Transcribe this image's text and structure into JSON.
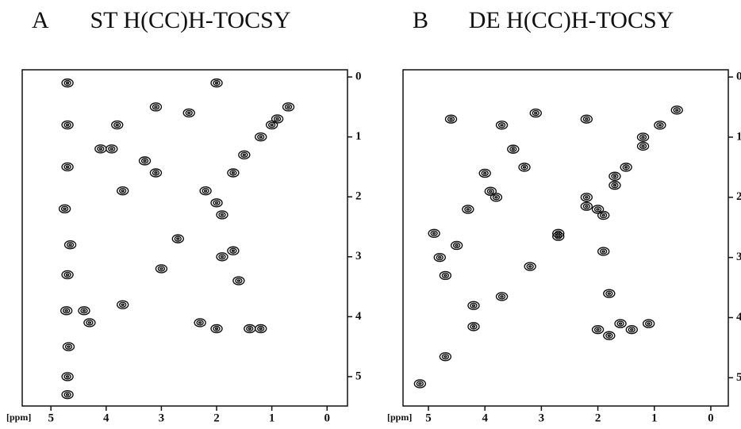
{
  "chart_data": [
    {
      "type": "contour",
      "panel": "A",
      "title": "ST H(CC)H-TOCSY",
      "x_label": "[ppm]",
      "xlim": [
        5.52,
        -0.37
      ],
      "ylim": [
        -0.12,
        5.49
      ],
      "yreversed": true,
      "xticks": [
        5,
        4,
        3,
        2,
        1,
        0
      ],
      "yticks": [
        0,
        1,
        2,
        3,
        4,
        5
      ],
      "color": "#111111",
      "x": [
        4.7,
        4.7,
        4.7,
        4.75,
        4.65,
        4.7,
        4.72,
        4.68,
        4.7,
        4.7,
        3.8,
        3.9,
        3.7,
        4.4,
        4.3,
        2.0,
        1.9,
        2.2,
        1.7,
        1.5,
        1.2,
        0.9,
        0.7,
        3.3,
        3.1,
        3.0,
        2.7,
        1.9,
        1.7,
        1.6,
        2.3,
        2.0,
        1.4,
        1.2,
        4.1,
        3.7,
        3.1,
        2.0,
        1.0,
        2.5
      ],
      "y": [
        0.1,
        0.8,
        1.5,
        2.2,
        2.8,
        3.3,
        3.9,
        4.5,
        5.0,
        5.3,
        0.8,
        1.2,
        1.9,
        3.9,
        4.1,
        2.1,
        2.3,
        1.9,
        1.6,
        1.3,
        1.0,
        0.7,
        0.5,
        1.4,
        1.6,
        3.2,
        2.7,
        3.0,
        2.9,
        3.4,
        4.1,
        4.2,
        4.2,
        4.2,
        1.2,
        3.8,
        0.5,
        0.1,
        0.8,
        0.6
      ]
    },
    {
      "type": "contour",
      "panel": "B",
      "title": "DE H(CC)H-TOCSY",
      "x_label": "[ppm]",
      "xlim": [
        5.45,
        -0.31
      ],
      "ylim": [
        -0.12,
        5.47
      ],
      "yreversed": true,
      "xticks": [
        5,
        4,
        3,
        2,
        1,
        0
      ],
      "yticks": [
        0,
        1,
        2,
        3,
        4,
        5
      ],
      "color": "#111111",
      "x": [
        5.15,
        4.7,
        4.2,
        3.7,
        3.2,
        2.7,
        2.2,
        1.7,
        1.2,
        0.6,
        4.9,
        4.8,
        4.7,
        4.5,
        4.3,
        4.0,
        3.9,
        3.8,
        3.7,
        3.5,
        2.2,
        2.0,
        1.9,
        1.7,
        1.5,
        2.0,
        1.8,
        1.6,
        1.4,
        1.1,
        1.2,
        0.9,
        1.9,
        2.2,
        1.8,
        3.3,
        3.1,
        2.7,
        4.2,
        4.6
      ],
      "y": [
        5.1,
        4.65,
        4.15,
        3.65,
        3.15,
        2.65,
        2.15,
        1.65,
        1.15,
        0.55,
        2.6,
        3.0,
        3.3,
        2.8,
        2.2,
        1.6,
        1.9,
        2.0,
        0.8,
        1.2,
        2.0,
        2.2,
        2.3,
        1.8,
        1.5,
        4.2,
        4.3,
        4.1,
        4.2,
        4.1,
        1.0,
        0.8,
        2.9,
        0.7,
        3.6,
        1.5,
        0.6,
        2.6,
        3.8,
        0.7
      ]
    }
  ]
}
